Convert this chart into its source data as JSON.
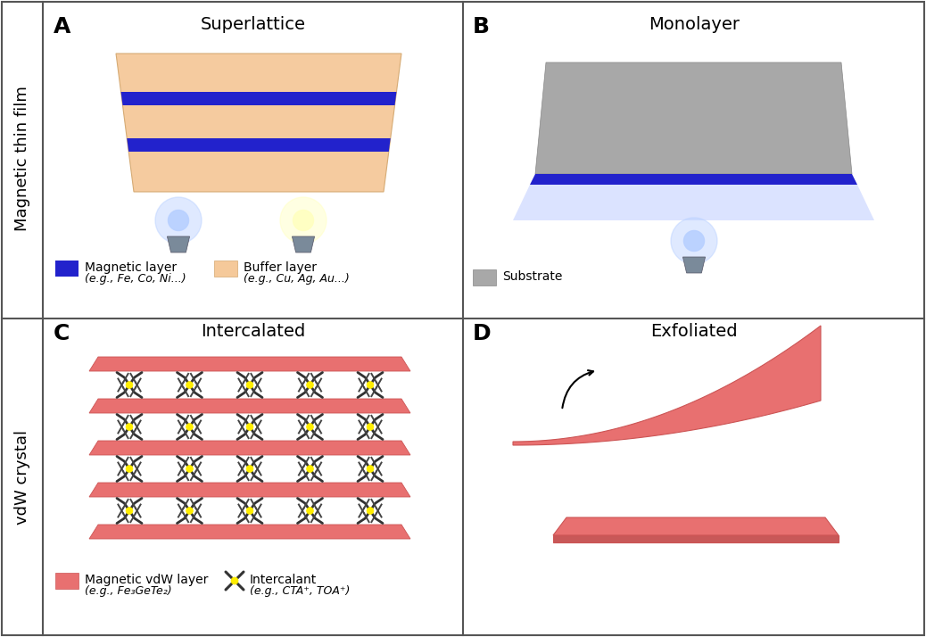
{
  "panel_A_title": "Superlattice",
  "panel_B_title": "Monolayer",
  "panel_C_title": "Intercalated",
  "panel_D_title": "Exfoliated",
  "left_label_top": "Magnetic thin film",
  "left_label_bottom": "vdW crystal",
  "panel_label_A": "A",
  "panel_label_B": "B",
  "panel_label_C": "C",
  "panel_label_D": "D",
  "color_magnetic_layer": "#2222cc",
  "color_buffer_layer": "#f5c99a",
  "color_substrate": "#a8a8a8",
  "color_vdw_layer": "#e87070",
  "color_vdw_edge": "#cc5555",
  "color_blue_glow": "#aac4ff",
  "color_yellow_glow": "#fffaaa",
  "background": "#ffffff",
  "border_color": "#555555",
  "legend_A_magnetic": "Magnetic layer",
  "legend_A_magnetic_sub": "(e.g., Fe, Co, Ni...)",
  "legend_A_buffer": "Buffer layer",
  "legend_A_buffer_sub": "(e.g., Cu, Ag, Au...)",
  "legend_B_substrate": "Substrate",
  "legend_C_vdw": "Magnetic vdW layer",
  "legend_C_vdw_sub": "(e.g., Fe₃GeTe₂)",
  "legend_C_intercalant": "Intercalant",
  "legend_C_intercalant_sub": "(e.g., CTA⁺, TOA⁺)"
}
